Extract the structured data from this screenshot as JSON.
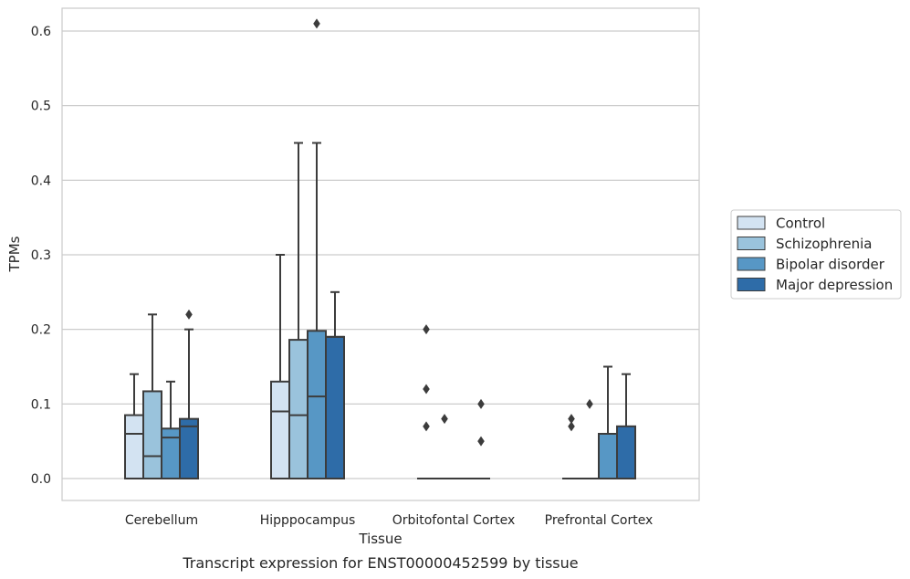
{
  "chart_data": {
    "type": "box",
    "xlabel": "Tissue",
    "ylabel": "TPMs",
    "caption": "Transcript expression for ENST00000452599 by tissue",
    "ylim": [
      -0.03,
      0.64
    ],
    "yticks": [
      0.0,
      0.1,
      0.2,
      0.3,
      0.4,
      0.5,
      0.6
    ],
    "ytick_labels": [
      "0.0",
      "0.1",
      "0.2",
      "0.3",
      "0.4",
      "0.5",
      "0.6"
    ],
    "grid": true,
    "legend_position": "right",
    "categories": [
      "Cerebellum",
      "Hipppocampus",
      "Orbitofontal Cortex",
      "Prefrontal Cortex"
    ],
    "series": [
      {
        "name": "Control",
        "color": "#d3e3f2",
        "boxes": [
          {
            "q1": 0.0,
            "median": 0.06,
            "q3": 0.085,
            "whisker_low": 0.0,
            "whisker_high": 0.14,
            "outliers": []
          },
          {
            "q1": 0.0,
            "median": 0.09,
            "q3": 0.13,
            "whisker_low": 0.0,
            "whisker_high": 0.3,
            "outliers": []
          },
          {
            "q1": 0.0,
            "median": 0.0,
            "q3": 0.0,
            "whisker_low": 0.0,
            "whisker_high": 0.0,
            "outliers": [
              0.07,
              0.12,
              0.2
            ]
          },
          {
            "q1": 0.0,
            "median": 0.0,
            "q3": 0.0,
            "whisker_low": 0.0,
            "whisker_high": 0.0,
            "outliers": [
              0.07,
              0.08
            ]
          }
        ]
      },
      {
        "name": "Schizophrenia",
        "color": "#9ac3dc",
        "boxes": [
          {
            "q1": 0.0,
            "median": 0.03,
            "q3": 0.117,
            "whisker_low": 0.0,
            "whisker_high": 0.22,
            "outliers": []
          },
          {
            "q1": 0.0,
            "median": 0.085,
            "q3": 0.186,
            "whisker_low": 0.0,
            "whisker_high": 0.45,
            "outliers": []
          },
          {
            "q1": 0.0,
            "median": 0.0,
            "q3": 0.0,
            "whisker_low": 0.0,
            "whisker_high": 0.0,
            "outliers": [
              0.08
            ]
          },
          {
            "q1": 0.0,
            "median": 0.0,
            "q3": 0.0,
            "whisker_low": 0.0,
            "whisker_high": 0.0,
            "outliers": [
              0.1
            ]
          }
        ]
      },
      {
        "name": "Bipolar disorder",
        "color": "#5797c5",
        "boxes": [
          {
            "q1": 0.0,
            "median": 0.055,
            "q3": 0.067,
            "whisker_low": 0.0,
            "whisker_high": 0.13,
            "outliers": []
          },
          {
            "q1": 0.0,
            "median": 0.11,
            "q3": 0.198,
            "whisker_low": 0.0,
            "whisker_high": 0.45,
            "outliers": [
              0.61
            ]
          },
          {
            "q1": 0.0,
            "median": 0.0,
            "q3": 0.0,
            "whisker_low": 0.0,
            "whisker_high": 0.0,
            "outliers": []
          },
          {
            "q1": 0.0,
            "median": 0.0,
            "q3": 0.06,
            "whisker_low": 0.0,
            "whisker_high": 0.15,
            "outliers": []
          }
        ]
      },
      {
        "name": "Major depression",
        "color": "#2e6ca8",
        "boxes": [
          {
            "q1": 0.0,
            "median": 0.07,
            "q3": 0.08,
            "whisker_low": 0.0,
            "whisker_high": 0.2,
            "outliers": [
              0.22
            ]
          },
          {
            "q1": 0.0,
            "median": 0.19,
            "q3": 0.19,
            "whisker_low": 0.0,
            "whisker_high": 0.25,
            "outliers": []
          },
          {
            "q1": 0.0,
            "median": 0.0,
            "q3": 0.0,
            "whisker_low": 0.0,
            "whisker_high": 0.0,
            "outliers": [
              0.05,
              0.1
            ]
          },
          {
            "q1": 0.0,
            "median": 0.0,
            "q3": 0.07,
            "whisker_low": 0.0,
            "whisker_high": 0.14,
            "outliers": []
          }
        ]
      }
    ]
  }
}
